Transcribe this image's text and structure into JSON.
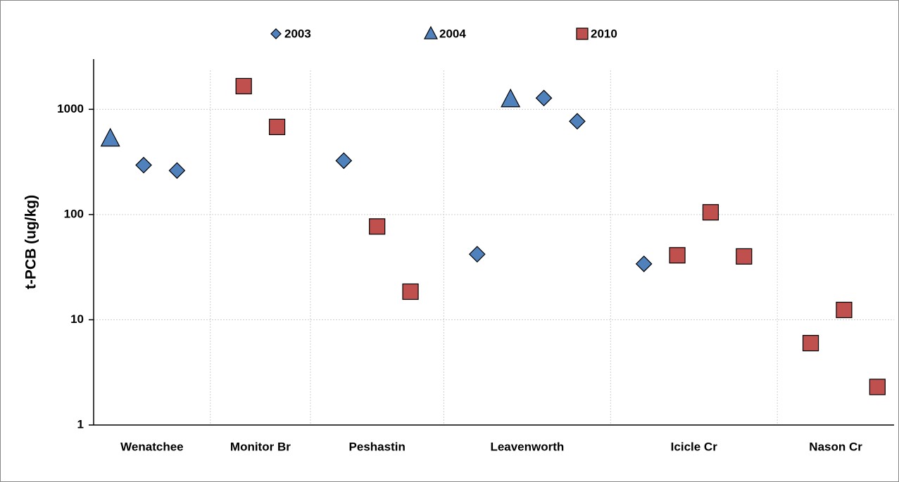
{
  "chart_data": {
    "type": "scatter",
    "y_label": "t-PCB  (ug/kg)",
    "log_y": true,
    "grid": true,
    "categories": [
      "Wenatchee",
      "Monitor Br",
      "Peshastin",
      "Leavenworth",
      "Icicle  Cr",
      "Nason Cr"
    ],
    "xlim": [
      0.5,
      24.5
    ],
    "xgrid": [
      4,
      7,
      11,
      16,
      21
    ],
    "ylim": [
      1,
      3000
    ],
    "yticks": [
      1,
      10,
      100,
      1000
    ],
    "legend_position": "top",
    "series": [
      {
        "name": "2003",
        "color": "#4f81bd",
        "marker": "diamond",
        "x": [
          2,
          3,
          8,
          12,
          14,
          15,
          17
        ],
        "values": [
          295,
          262,
          325,
          42,
          1280,
          770,
          34
        ]
      },
      {
        "name": "2004",
        "color": "#4f81bd",
        "marker": "triangle",
        "x": [
          1,
          13
        ],
        "values": [
          525,
          1240
        ]
      },
      {
        "name": "2010",
        "color": "#c0504d",
        "marker": "square",
        "x": [
          5,
          6,
          9,
          10,
          18,
          19,
          20,
          22,
          23,
          24
        ],
        "values": [
          1660,
          680,
          77,
          18.5,
          41,
          105,
          40,
          6,
          12.4,
          2.3
        ]
      }
    ]
  }
}
